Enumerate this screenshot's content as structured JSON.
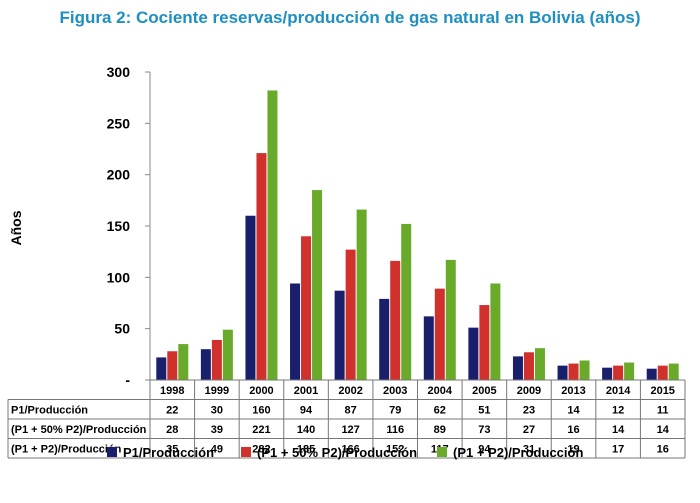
{
  "chart_data": {
    "type": "bar",
    "title": "Figura 2: Cociente reservas/producción de gas natural en Bolivia (años)",
    "ylabel": "Años",
    "ylim": [
      0,
      300
    ],
    "yticks": [
      "300",
      "250",
      "200",
      "150",
      "100",
      "50",
      "-"
    ],
    "categories": [
      "1998",
      "1999",
      "2000",
      "2001",
      "2002",
      "2003",
      "2004",
      "2005",
      "2009",
      "2013",
      "2014",
      "2015"
    ],
    "series": [
      {
        "name": "P1/Producción",
        "table_label": "P1/Producción",
        "color": "#1a1f6b",
        "values": [
          22,
          30,
          160,
          94,
          87,
          79,
          62,
          51,
          23,
          14,
          12,
          11
        ]
      },
      {
        "name": "(P1 + 50% P2)/Producción",
        "table_label": "(P1 + 50% P2)/Producción",
        "color": "#d0312d",
        "values": [
          28,
          39,
          221,
          140,
          127,
          116,
          89,
          73,
          27,
          16,
          14,
          14
        ]
      },
      {
        "name": "(P1 + P2)/Producción",
        "table_label": "(P1 + P2)/Producción",
        "color": "#6aaa2a",
        "values": [
          35,
          49,
          282,
          185,
          166,
          152,
          117,
          94,
          31,
          19,
          17,
          16
        ]
      }
    ],
    "grid": false,
    "legend": "bottom",
    "data_table": true
  }
}
